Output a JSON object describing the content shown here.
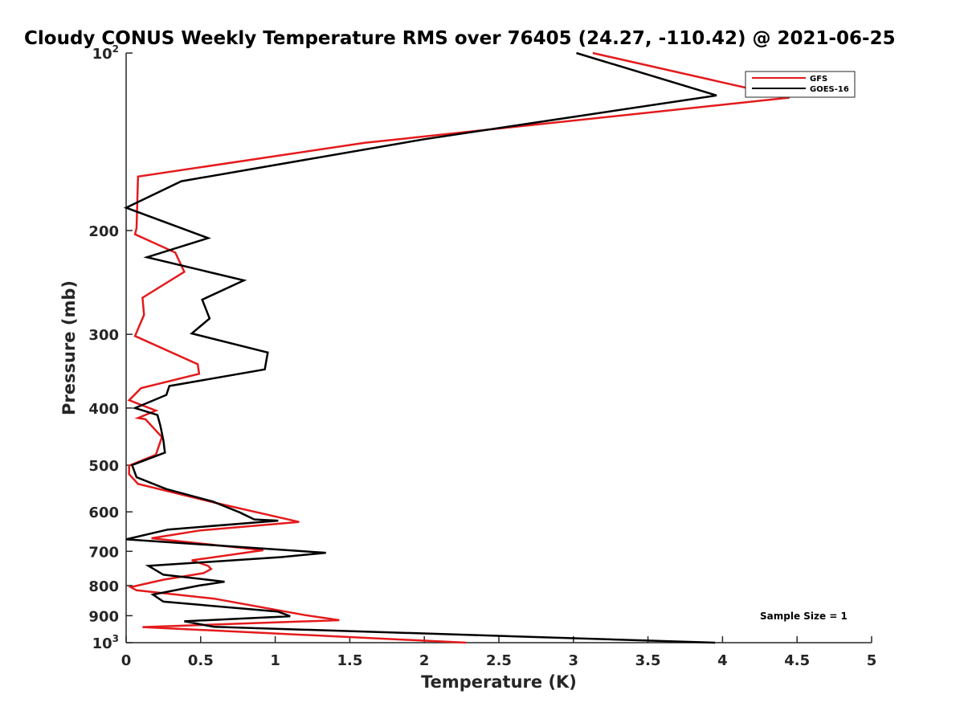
{
  "chart_data": {
    "type": "line",
    "title": "Cloudy CONUS Weekly Temperature RMS over 76405 (24.27, -110.42) @ 2021-06-25",
    "xlabel": "Temperature (K)",
    "ylabel": "Pressure (mb)",
    "xlim": [
      0,
      5
    ],
    "ylim": [
      100,
      1000
    ],
    "y_scale": "log",
    "y_reversed": true,
    "x_ticks": [
      0,
      0.5,
      1,
      1.5,
      2,
      2.5,
      3,
      3.5,
      4,
      4.5,
      5
    ],
    "x_tick_labels": [
      "0",
      "0.5",
      "1",
      "1.5",
      "2",
      "2.5",
      "3",
      "3.5",
      "4",
      "4.5",
      "5"
    ],
    "y_ticks": [
      {
        "value": 100,
        "base": "10",
        "exp": "2"
      },
      {
        "value": 200,
        "label": "200"
      },
      {
        "value": 300,
        "label": "300"
      },
      {
        "value": 400,
        "label": "400"
      },
      {
        "value": 500,
        "label": "500"
      },
      {
        "value": 600,
        "label": "600"
      },
      {
        "value": 700,
        "label": "700"
      },
      {
        "value": 800,
        "label": "800"
      },
      {
        "value": 900,
        "label": "900"
      },
      {
        "value": 1000,
        "base": "10",
        "exp": "3"
      }
    ],
    "grid": false,
    "legend_position": "top-right",
    "annotation": "Sample Size = 1",
    "series": [
      {
        "name": "GFS",
        "color": "#e41a1c",
        "points": [
          [
            3.13,
            100
          ],
          [
            4.45,
            119
          ],
          [
            1.6,
            142
          ],
          [
            0.08,
            162
          ],
          [
            0.07,
            198
          ],
          [
            0.06,
            203
          ],
          [
            0.33,
            218
          ],
          [
            0.39,
            235
          ],
          [
            0.11,
            260
          ],
          [
            0.12,
            278
          ],
          [
            0.06,
            302
          ],
          [
            0.48,
            337
          ],
          [
            0.49,
            350
          ],
          [
            0.1,
            370
          ],
          [
            0.02,
            388
          ],
          [
            0.2,
            404
          ],
          [
            0.08,
            416
          ],
          [
            0.13,
            418
          ],
          [
            0.24,
            448
          ],
          [
            0.2,
            480
          ],
          [
            0.02,
            501
          ],
          [
            0.02,
            518
          ],
          [
            0.08,
            538
          ],
          [
            0.61,
            580
          ],
          [
            1.16,
            624
          ],
          [
            0.5,
            645
          ],
          [
            0.17,
            665
          ],
          [
            0.92,
            697
          ],
          [
            0.44,
            725
          ],
          [
            0.55,
            741
          ],
          [
            0.57,
            750
          ],
          [
            0.52,
            762
          ],
          [
            0.25,
            782
          ],
          [
            0.03,
            805
          ],
          [
            0.07,
            815
          ],
          [
            0.59,
            842
          ],
          [
            1.2,
            898
          ],
          [
            1.43,
            916
          ],
          [
            0.11,
            941
          ],
          [
            2.28,
            1000
          ]
        ]
      },
      {
        "name": "GOES-16",
        "color": "#000000",
        "points": [
          [
            3.02,
            100
          ],
          [
            3.96,
            118
          ],
          [
            2.0,
            140
          ],
          [
            0.37,
            165
          ],
          [
            0.0,
            183
          ],
          [
            0.55,
            206
          ],
          [
            0.14,
            222
          ],
          [
            0.79,
            243
          ],
          [
            0.51,
            262
          ],
          [
            0.56,
            282
          ],
          [
            0.44,
            299
          ],
          [
            0.95,
            322
          ],
          [
            0.93,
            344
          ],
          [
            0.29,
            367
          ],
          [
            0.27,
            380
          ],
          [
            0.06,
            400
          ],
          [
            0.21,
            411
          ],
          [
            0.23,
            429
          ],
          [
            0.25,
            454
          ],
          [
            0.26,
            476
          ],
          [
            0.04,
            500
          ],
          [
            0.07,
            524
          ],
          [
            0.27,
            549
          ],
          [
            0.58,
            576
          ],
          [
            0.76,
            601
          ],
          [
            0.86,
            618
          ],
          [
            1.02,
            621
          ],
          [
            0.28,
            643
          ],
          [
            0.0,
            668
          ],
          [
            1.34,
            704
          ],
          [
            1.04,
            716
          ],
          [
            0.15,
            741
          ],
          [
            0.25,
            767
          ],
          [
            0.66,
            788
          ],
          [
            0.49,
            800
          ],
          [
            0.18,
            829
          ],
          [
            0.25,
            852
          ],
          [
            1.02,
            886
          ],
          [
            1.1,
            902
          ],
          [
            0.39,
            920
          ],
          [
            0.59,
            940
          ],
          [
            3.95,
            1000
          ]
        ]
      }
    ]
  }
}
